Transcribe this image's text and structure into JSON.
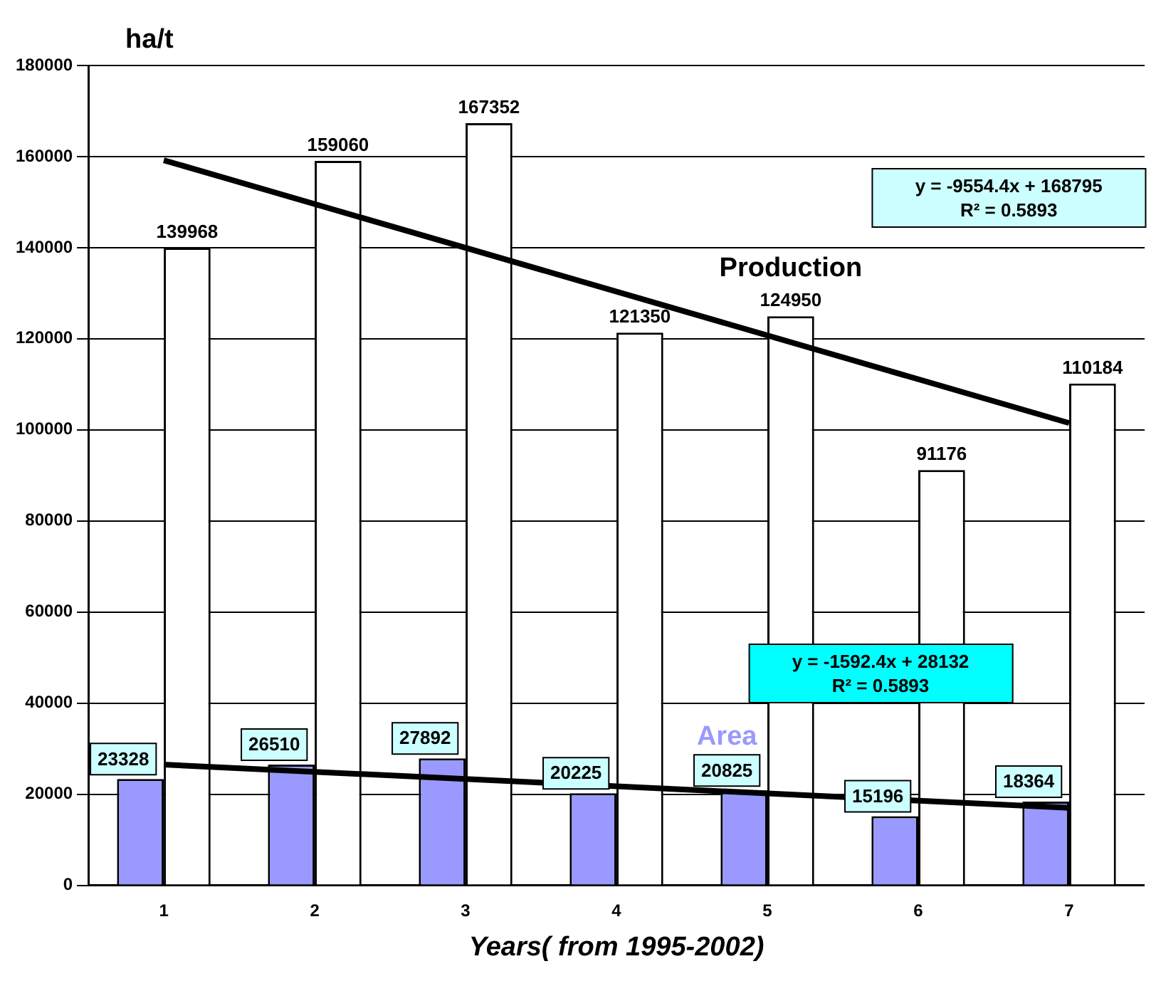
{
  "chart_data": {
    "type": "bar",
    "xlabel": "Years( from 1995-2002)",
    "ylabel": "ha/t",
    "categories": [
      "1",
      "2",
      "3",
      "4",
      "5",
      "6",
      "7"
    ],
    "series": [
      {
        "name": "Area",
        "color": "#9999ff",
        "values": [
          23328,
          26510,
          27892,
          20225,
          20825,
          15196,
          18364
        ],
        "value_labels": [
          "23328",
          "26510",
          "27892",
          "20225",
          "20825",
          "15196",
          "18364"
        ]
      },
      {
        "name": "Production",
        "color": "#ffffff",
        "values": [
          139968,
          159060,
          167352,
          121350,
          124950,
          91176,
          110184
        ],
        "value_labels": [
          "139968",
          "159060",
          "167352",
          "121350",
          "124950",
          "91176",
          "110184"
        ]
      },
      {
        "type": "line",
        "color": "#000000",
        "x": [
          "1",
          "7"
        ],
        "values": [
          159200,
          101500
        ]
      },
      {
        "type": "line",
        "color": "#000000",
        "x": [
          "1",
          "7"
        ],
        "values": [
          26500,
          17000
        ]
      }
    ],
    "annotations": [
      "y = -9554.4x + 168795\nR² = 0.5893",
      "y = -1592.4x + 28132\nR² = 0.5893"
    ],
    "ylim": [
      0,
      180000
    ],
    "yticks": [
      0,
      20000,
      40000,
      60000,
      80000,
      100000,
      120000,
      140000,
      160000,
      180000
    ],
    "grid": "y",
    "legend": false,
    "marker": "none"
  }
}
